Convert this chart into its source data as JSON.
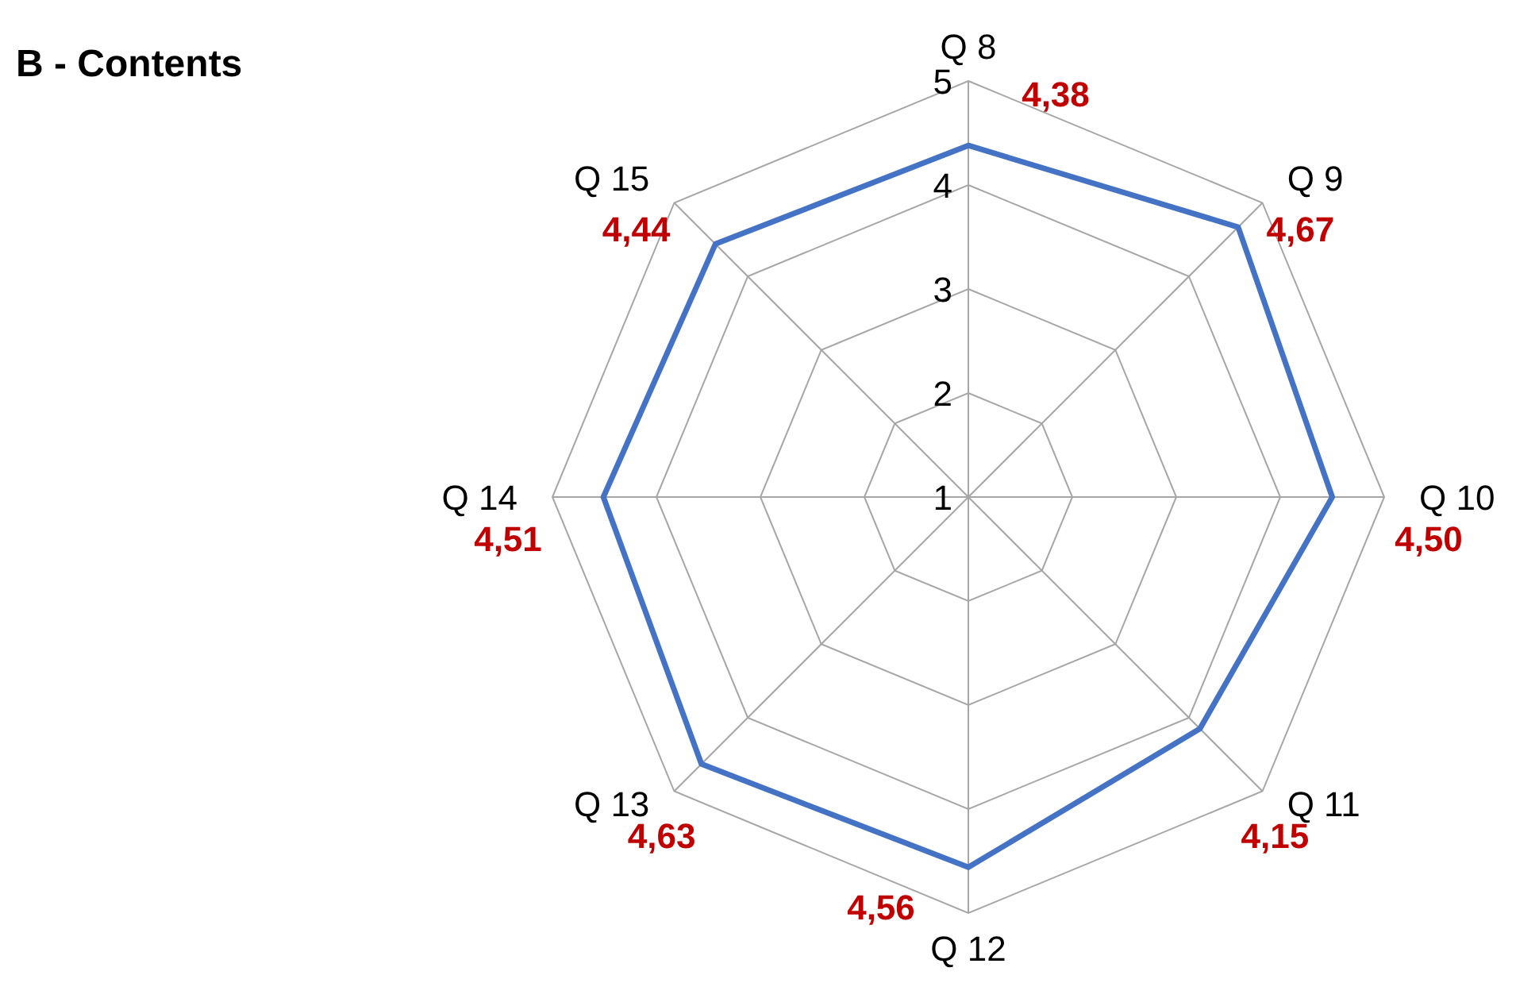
{
  "chart_data": {
    "type": "radar",
    "title": "B - Contents",
    "categories": [
      "Q 8",
      "Q 9",
      "Q 10",
      "Q 11",
      "Q 12",
      "Q 13",
      "Q 14",
      "Q 15"
    ],
    "series": [
      {
        "color": "#4472c4",
        "values": [
          4.38,
          4.67,
          4.5,
          4.15,
          4.56,
          4.63,
          4.51,
          4.44
        ],
        "value_labels": [
          "4,38",
          "4,67",
          "4,50",
          "4,15",
          "4,56",
          "4,63",
          "4,51",
          "4,44"
        ]
      }
    ],
    "ylim": [
      1,
      5
    ],
    "yticks": [
      1,
      2,
      3,
      4,
      5
    ],
    "grid": true
  }
}
